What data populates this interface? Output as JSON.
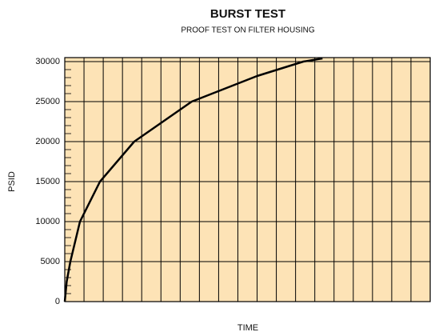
{
  "chart_data": {
    "type": "line",
    "title": "BURST TEST",
    "subtitle": "PROOF TEST ON FILTER HOUSING",
    "x_label": "TIME",
    "y_label": "PSID",
    "x": [
      0,
      0.1,
      0.29,
      0.79,
      1.83,
      3.61,
      6.6,
      10,
      12.4,
      13.4
    ],
    "series": [
      {
        "name": "Burst test",
        "color": "#000000",
        "values": [
          0,
          2500,
          5000,
          10000,
          15000,
          20000,
          25000,
          28200,
          30000,
          30400
        ]
      }
    ],
    "xlim": [
      0,
      19
    ],
    "xticks": [
      0,
      1,
      2,
      3,
      4,
      5,
      6,
      7,
      8,
      9,
      10,
      11,
      12,
      13,
      14,
      15,
      16,
      17,
      18,
      19
    ],
    "ylim": [
      0,
      30500
    ],
    "yticks": [
      0,
      5000,
      10000,
      15000,
      20000,
      25000,
      30000
    ],
    "grid": true,
    "background": "#fde3b6"
  }
}
